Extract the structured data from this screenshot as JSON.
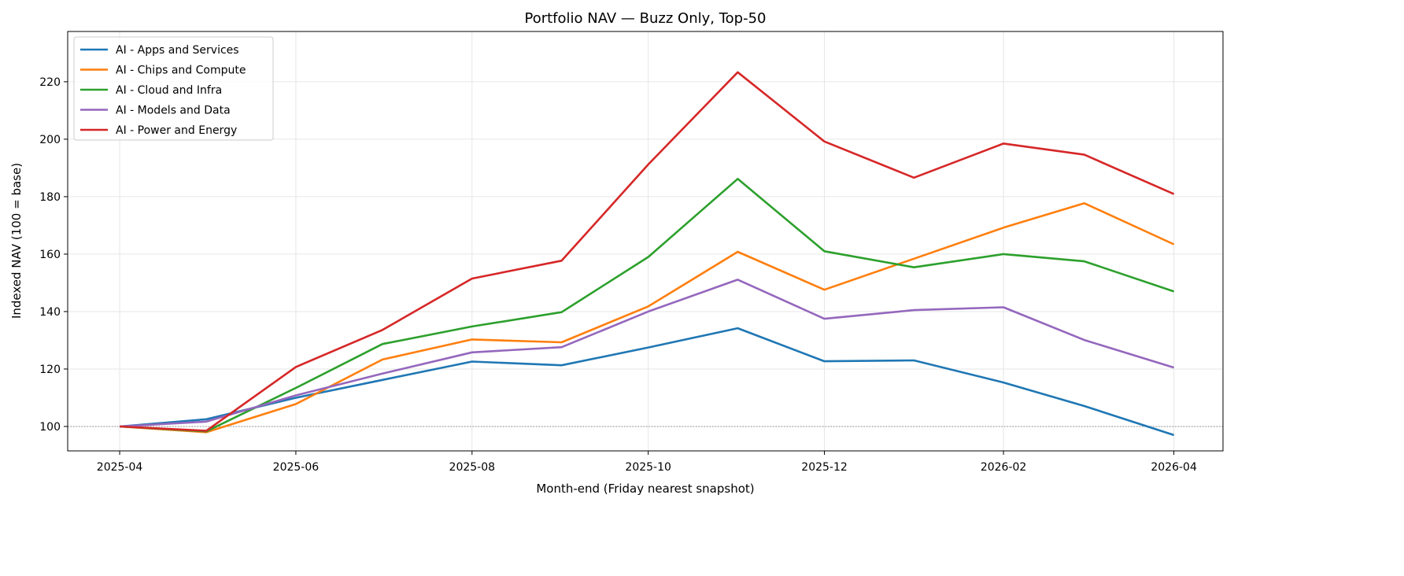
{
  "chart_data": {
    "type": "line",
    "title": "Portfolio NAV — Buzz Only, Top-50",
    "xlabel": "Month-end (Friday nearest snapshot)",
    "ylabel": "Indexed NAV (100 = base)",
    "xlim": [
      "2025-03-14",
      "2026-04-18"
    ],
    "ylim": [
      91.5,
      237.5
    ],
    "x_ticks": [
      "2025-04",
      "2025-06",
      "2025-08",
      "2025-10",
      "2025-12",
      "2026-02",
      "2026-04"
    ],
    "y_ticks": [
      100,
      120,
      140,
      160,
      180,
      200,
      220
    ],
    "grid": true,
    "reference_line": {
      "y": 100,
      "style": "dotted",
      "color": "#888888"
    },
    "legend_placement": "top-left",
    "x": [
      "2025-04-01",
      "2025-05-01",
      "2025-06-01",
      "2025-07-01",
      "2025-08-01",
      "2025-09-01",
      "2025-10-01",
      "2025-11-01",
      "2025-12-01",
      "2026-01-01",
      "2026-02-01",
      "2026-03-01",
      "2026-04-01"
    ],
    "series": [
      {
        "name": "AI - Apps and Services",
        "color": "#1f77b4",
        "values": [
          100,
          102.5,
          110,
          116.2,
          122.6,
          121.3,
          127.5,
          134.2,
          122.7,
          123,
          115.3,
          107.1,
          97
        ]
      },
      {
        "name": "AI - Chips and Compute",
        "color": "#ff7f0e",
        "values": [
          100,
          98,
          107.8,
          123.3,
          130.3,
          129.3,
          141.8,
          160.8,
          147.6,
          158.4,
          169.2,
          177.7,
          163.4
        ]
      },
      {
        "name": "AI - Cloud and Infra",
        "color": "#2ca02c",
        "values": [
          100,
          98.3,
          113.4,
          128.7,
          134.8,
          139.8,
          159,
          186.2,
          161,
          155.4,
          160,
          157.5,
          147
        ]
      },
      {
        "name": "AI - Models and Data",
        "color": "#9467bd",
        "values": [
          100,
          101.7,
          110.8,
          118.4,
          125.8,
          127.6,
          140,
          151.1,
          137.5,
          140.5,
          141.5,
          130.1,
          120.5
        ]
      },
      {
        "name": "AI - Power and Energy",
        "color": "#d62728",
        "values": [
          100,
          98.5,
          120.7,
          133.6,
          151.5,
          157.7,
          191.2,
          223.3,
          199.2,
          186.6,
          198.5,
          194.6,
          180.9
        ]
      }
    ]
  }
}
